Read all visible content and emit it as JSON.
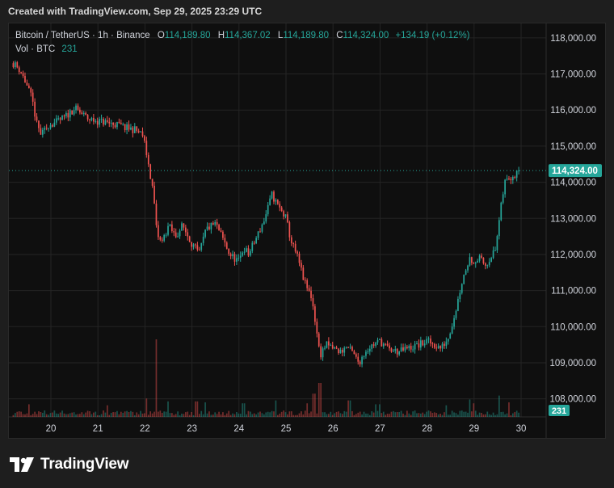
{
  "caption": "Created with TradingView.com, Sep 29, 2025 23:29 UTC",
  "brand_name": "TradingView",
  "legend": {
    "symbol": "Bitcoin / TetherUS · 1h · Binance",
    "o_label": "O",
    "o_value": "114,189.80",
    "h_label": "H",
    "h_value": "114,367.02",
    "l_label": "L",
    "l_value": "114,189.80",
    "c_label": "C",
    "c_value": "114,324.00",
    "change": "+134.19 (+0.12%)",
    "vol_label": "Vol · BTC",
    "vol_value": "231"
  },
  "colors": {
    "up": "#26a69a",
    "down": "#ef5350",
    "grid": "#242424",
    "axis_text": "#d1d4dc",
    "price_badge": "#26a69a"
  },
  "chart_data": {
    "type": "candlestick",
    "symbol": "BTCUSDT",
    "interval": "1h",
    "x": [
      "20",
      "21",
      "22",
      "23",
      "24",
      "25",
      "26",
      "27",
      "28",
      "29",
      "30"
    ],
    "x_start_day": 19.2,
    "x_end_day": 30.0,
    "ylim": [
      107500,
      118400
    ],
    "y_ticks": [
      {
        "value": 118000,
        "label": "118,000.00"
      },
      {
        "value": 117000,
        "label": "117,000.00"
      },
      {
        "value": 116000,
        "label": "116,000.00"
      },
      {
        "value": 115000,
        "label": "115,000.00"
      },
      {
        "value": 114000,
        "label": "114,000.00"
      },
      {
        "value": 113000,
        "label": "113,000.00"
      },
      {
        "value": 112000,
        "label": "112,000.00"
      },
      {
        "value": 111000,
        "label": "111,000.00"
      },
      {
        "value": 110000,
        "label": "110,000.00"
      },
      {
        "value": 109000,
        "label": "109,000.00"
      },
      {
        "value": 108000,
        "label": "108,000.00"
      }
    ],
    "last_price": 114324,
    "last_price_label": "114,324.00",
    "last_volume_label": "231",
    "grid": true,
    "close_path": [
      [
        19.2,
        117300
      ],
      [
        19.35,
        117100
      ],
      [
        19.45,
        116800
      ],
      [
        19.6,
        116300
      ],
      [
        19.7,
        115600
      ],
      [
        19.8,
        115300
      ],
      [
        19.95,
        115600
      ],
      [
        20.1,
        115650
      ],
      [
        20.3,
        115800
      ],
      [
        20.5,
        116050
      ],
      [
        20.65,
        115900
      ],
      [
        20.8,
        115750
      ],
      [
        21.0,
        115700
      ],
      [
        21.2,
        115650
      ],
      [
        21.4,
        115600
      ],
      [
        21.6,
        115500
      ],
      [
        21.8,
        115450
      ],
      [
        21.95,
        115300
      ],
      [
        22.02,
        114900
      ],
      [
        22.1,
        114300
      ],
      [
        22.18,
        113700
      ],
      [
        22.25,
        112600
      ],
      [
        22.35,
        112300
      ],
      [
        22.5,
        112800
      ],
      [
        22.65,
        112500
      ],
      [
        22.8,
        112800
      ],
      [
        23.0,
        112300
      ],
      [
        23.15,
        112000
      ],
      [
        23.3,
        112700
      ],
      [
        23.5,
        112850
      ],
      [
        23.65,
        112450
      ],
      [
        23.8,
        112000
      ],
      [
        24.0,
        111800
      ],
      [
        24.1,
        112200
      ],
      [
        24.2,
        112000
      ],
      [
        24.35,
        112400
      ],
      [
        24.55,
        113000
      ],
      [
        24.7,
        113650
      ],
      [
        24.85,
        113300
      ],
      [
        25.0,
        113000
      ],
      [
        25.1,
        112400
      ],
      [
        25.25,
        111900
      ],
      [
        25.4,
        111200
      ],
      [
        25.55,
        110800
      ],
      [
        25.65,
        109900
      ],
      [
        25.72,
        109200
      ],
      [
        25.85,
        109500
      ],
      [
        26.0,
        109400
      ],
      [
        26.15,
        109300
      ],
      [
        26.3,
        109450
      ],
      [
        26.45,
        109200
      ],
      [
        26.55,
        109000
      ],
      [
        26.7,
        109350
      ],
      [
        26.85,
        109500
      ],
      [
        27.0,
        109600
      ],
      [
        27.2,
        109350
      ],
      [
        27.4,
        109300
      ],
      [
        27.6,
        109400
      ],
      [
        27.85,
        109500
      ],
      [
        28.0,
        109600
      ],
      [
        28.15,
        109500
      ],
      [
        28.3,
        109400
      ],
      [
        28.45,
        109700
      ],
      [
        28.6,
        110400
      ],
      [
        28.75,
        111300
      ],
      [
        28.9,
        111900
      ],
      [
        29.0,
        111800
      ],
      [
        29.1,
        111900
      ],
      [
        29.25,
        111700
      ],
      [
        29.35,
        111950
      ],
      [
        29.45,
        112100
      ],
      [
        29.55,
        113100
      ],
      [
        29.65,
        114000
      ],
      [
        29.75,
        114150
      ],
      [
        29.85,
        114200
      ],
      [
        29.95,
        114324
      ]
    ],
    "volume_events": [
      [
        22.25,
        8.0
      ],
      [
        25.72,
        3.5
      ],
      [
        25.6,
        2.4
      ],
      [
        29.55,
        2.2
      ],
      [
        28.9,
        1.8
      ],
      [
        24.8,
        1.7
      ],
      [
        23.1,
        1.6
      ],
      [
        22.05,
        1.9
      ],
      [
        26.35,
        1.7
      ],
      [
        29.0,
        1.4
      ],
      [
        22.5,
        1.6
      ],
      [
        23.3,
        1.5
      ],
      [
        24.1,
        1.4
      ],
      [
        25.45,
        1.4
      ],
      [
        27.0,
        1.3
      ],
      [
        19.55,
        1.3
      ],
      [
        21.2,
        1.2
      ],
      [
        26.9,
        1.3
      ],
      [
        28.4,
        1.2
      ],
      [
        29.75,
        1.5
      ]
    ]
  }
}
